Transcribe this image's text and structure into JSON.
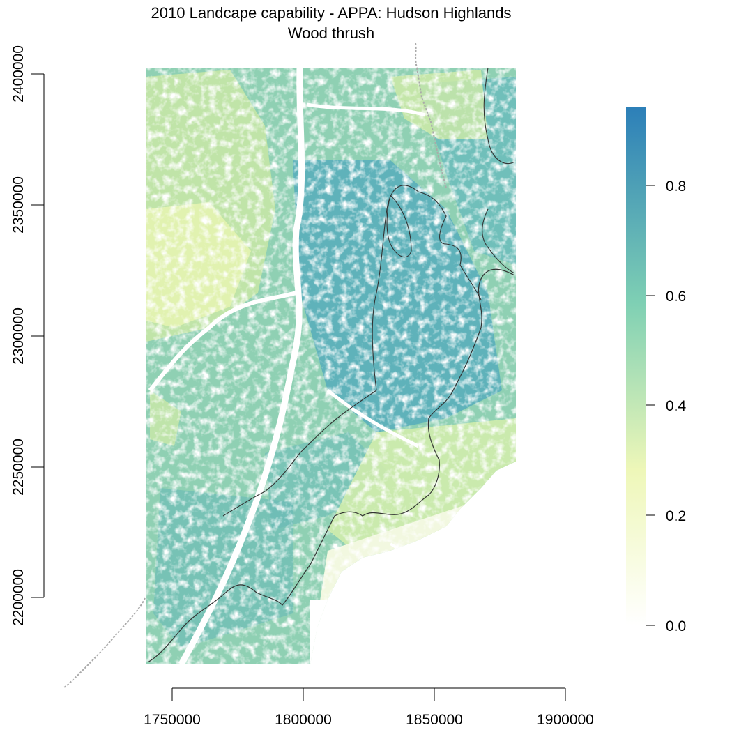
{
  "title": {
    "line1": "2010 Landcape capability - APPA: Hudson Highlands",
    "line2": "Wood thrush"
  },
  "map": {
    "x_ticks": [
      "1750000",
      "1800000",
      "1850000",
      "1900000"
    ],
    "y_ticks": [
      "2200000",
      "2250000",
      "2300000",
      "2350000",
      "2400000"
    ]
  },
  "legend": {
    "ticks": [
      "0.0",
      "0.2",
      "0.4",
      "0.6",
      "0.8"
    ],
    "colors": {
      "low": "#ffffff",
      "mid_low": "#eef7b8",
      "mid": "#7fd0b4",
      "high": "#2c7fb8"
    }
  },
  "colors": {
    "boundary_line": "#333333",
    "state_line": "#aaaaaa",
    "water": "#ffffff"
  }
}
